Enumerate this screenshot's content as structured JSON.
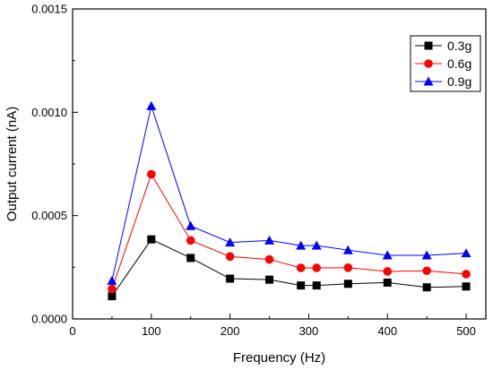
{
  "chart_data": {
    "type": "line",
    "xlabel": "Frequency (Hz)",
    "ylabel": "Output current (nA)",
    "xlim": [
      0,
      525
    ],
    "ylim": [
      0,
      0.0015
    ],
    "x_ticks": [
      0,
      100,
      200,
      300,
      400,
      500
    ],
    "x_tick_labels": [
      "0",
      "100",
      "200",
      "300",
      "400",
      "500"
    ],
    "y_ticks": [
      0,
      0.0005,
      0.001,
      0.0015
    ],
    "y_tick_labels": [
      "0.0000",
      "0.0005",
      "0.0010",
      "0.0015"
    ],
    "grid": false,
    "legend_position": "top-right",
    "x": [
      50,
      100,
      150,
      200,
      250,
      290,
      310,
      350,
      400,
      450,
      500
    ],
    "series": [
      {
        "name": "0.3g",
        "color": "#000000",
        "marker": "square",
        "values": [
          0.00011,
          0.000385,
          0.000295,
          0.000195,
          0.00019,
          0.000162,
          0.000162,
          0.00017,
          0.000176,
          0.000153,
          0.000157
        ]
      },
      {
        "name": "0.6g",
        "color": "#ff0000",
        "marker": "circle",
        "values": [
          0.000145,
          0.0007,
          0.00038,
          0.000302,
          0.000288,
          0.000247,
          0.000247,
          0.000248,
          0.00023,
          0.000233,
          0.000217
        ]
      },
      {
        "name": "0.9g",
        "color": "#0000ff",
        "marker": "triangle",
        "values": [
          0.000185,
          0.00103,
          0.00045,
          0.00037,
          0.00038,
          0.000355,
          0.000355,
          0.000333,
          0.000308,
          0.000308,
          0.000318
        ]
      }
    ]
  }
}
